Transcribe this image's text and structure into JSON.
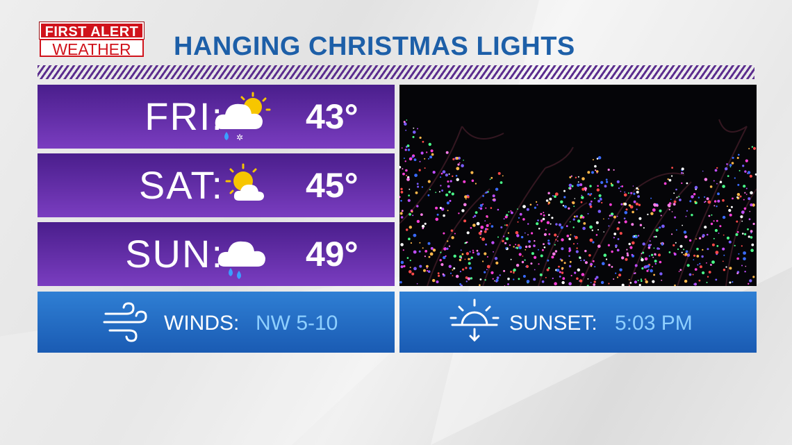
{
  "logo": {
    "line1": "FIRST ALERT",
    "line2": "WEATHER"
  },
  "title": "HANGING CHRISTMAS LIGHTS",
  "forecast": [
    {
      "day": "FRI:",
      "temp": "43°",
      "icon": "partly-cloudy-rain-snow-icon"
    },
    {
      "day": "SAT:",
      "temp": "45°",
      "icon": "partly-cloudy-icon"
    },
    {
      "day": "SUN:",
      "temp": "49°",
      "icon": "cloud-rain-icon"
    }
  ],
  "winds": {
    "label": "WINDS:",
    "value": "NW 5-10",
    "icon": "wind-icon"
  },
  "sunset": {
    "label": "SUNSET:",
    "value": "5:03 PM",
    "icon": "sunset-icon"
  },
  "photo": {
    "subject": "christmas-lights-trees"
  },
  "colors": {
    "title_blue": "#1d5fa8",
    "panel_purple": "#5a2a9c",
    "panel_blue": "#2a74c8",
    "logo_red": "#d0121b",
    "info_value": "#8fd0ff"
  }
}
